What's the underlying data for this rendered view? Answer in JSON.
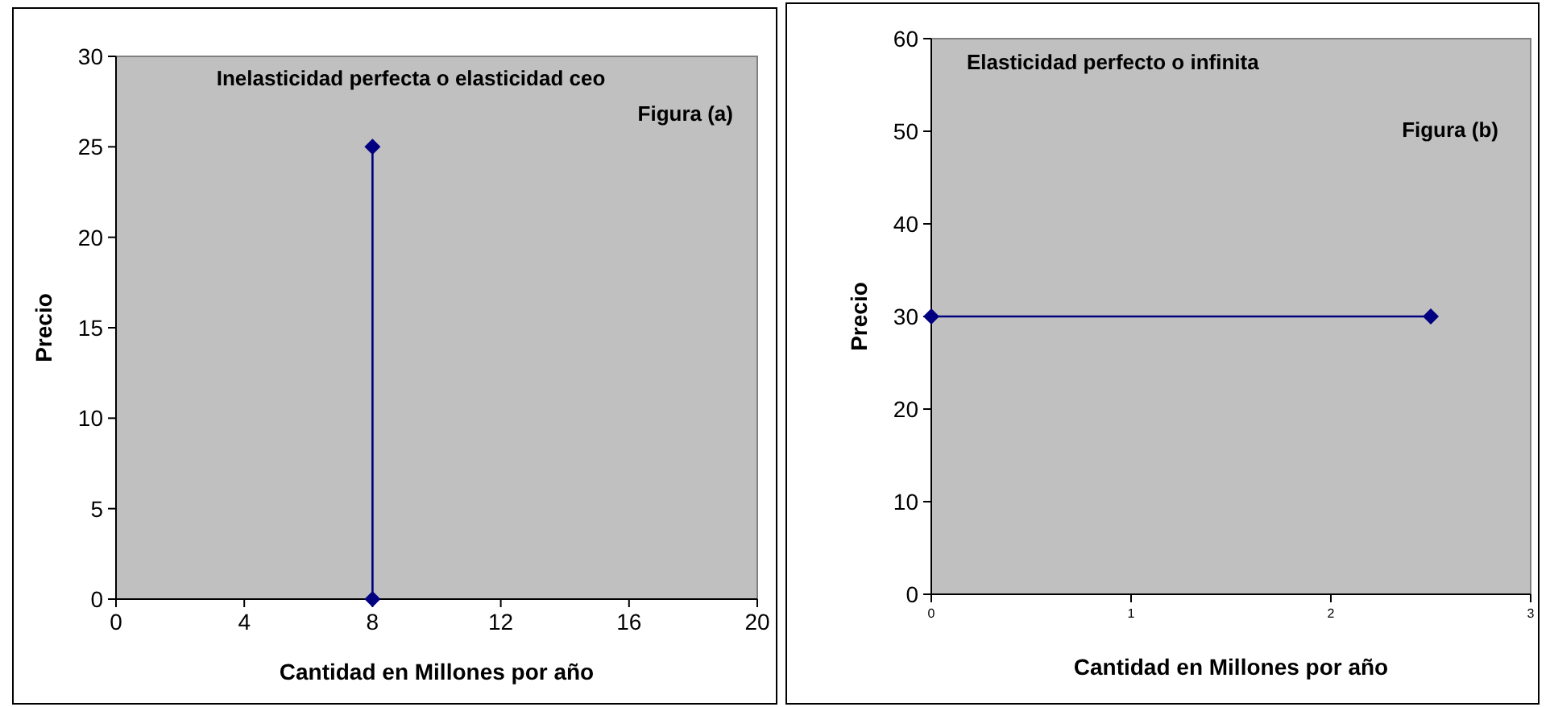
{
  "chart_data": [
    {
      "type": "line",
      "title": "Inelasticidad perfecta o elasticidad ceo",
      "subtitle": "Figura (a)",
      "xlabel": "Cantidad en Millones por año",
      "ylabel": "Precio",
      "x": [
        8,
        8
      ],
      "series": [
        {
          "color": "#000080",
          "values": [
            0,
            25
          ]
        }
      ],
      "xlim": [
        0,
        20
      ],
      "xticks": [
        0,
        4,
        8,
        12,
        16,
        20
      ],
      "ylim": [
        0,
        30
      ],
      "yticks": [
        0,
        5,
        10,
        15,
        20,
        25,
        30
      ],
      "marker": "diamond",
      "line_style": "solid",
      "grid": false
    },
    {
      "type": "line",
      "title": "Elasticidad perfecto  o infinita",
      "subtitle": "Figura (b)",
      "xlabel": "Cantidad en Millones por año",
      "ylabel": "Precio",
      "x": [
        0,
        2.5
      ],
      "series": [
        {
          "color": "#000080",
          "values": [
            30,
            30
          ]
        }
      ],
      "xlim": [
        0,
        3
      ],
      "xticks": [
        0,
        1,
        2,
        3
      ],
      "ylim": [
        0,
        60
      ],
      "yticks": [
        0,
        10,
        20,
        30,
        40,
        50,
        60
      ],
      "marker": "diamond",
      "line_style": "solid",
      "grid": false
    }
  ]
}
